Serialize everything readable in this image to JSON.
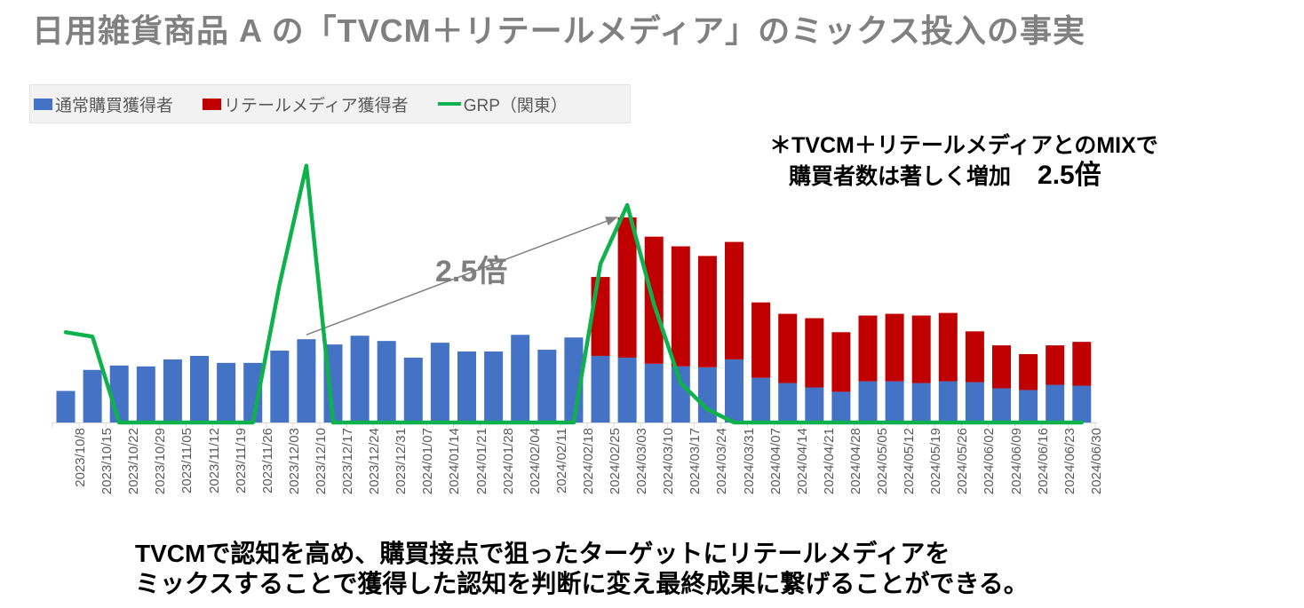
{
  "title": "日用雑貨商品 A の「TVCM＋リテールメディア」のミックス投入の事実",
  "legend": {
    "normal_buyers": "通常購買獲得者",
    "retail_media_buyers": "リテールメディア獲得者",
    "grp": "GRP（関東）"
  },
  "annotation": {
    "multiplier_label": "2.5倍",
    "note_line1": "＊TVCM＋リテールメディアとのMIXで",
    "note_line2": "購買者数は著しく増加",
    "note_multiplier": "2.5倍"
  },
  "caption": {
    "line1": "TVCMで認知を高め、購買接点で狙ったターゲットにリテールメディアを",
    "line2": "ミックスすることで獲得した認知を判断に変え最終成果に繋げることができる。"
  },
  "colors": {
    "blue_bar": "#4472C4",
    "red_bar": "#C00000",
    "green_line": "#0FB14C",
    "axis": "#d9d9d9",
    "arrow": "#808080",
    "title_gray": "#808080",
    "label_gray": "#595959"
  },
  "chart_data": {
    "type": "bar",
    "stacked": true,
    "grid": false,
    "y_axis_visible": false,
    "legend_position": "top-left",
    "ylim": [
      0,
      320
    ],
    "value_unit": "relative index (no y-axis shown in source)",
    "categories": [
      "2023/10/8",
      "2023/10/15",
      "2023/10/22",
      "2023/10/29",
      "2023/11/05",
      "2023/11/12",
      "2023/11/19",
      "2023/11/26",
      "2023/12/03",
      "2023/12/10",
      "2023/12/17",
      "2023/12/24",
      "2023/12/31",
      "2024/01/07",
      "2024/01/14",
      "2024/01/21",
      "2024/01/28",
      "2024/02/04",
      "2024/02/11",
      "2024/02/18",
      "2024/02/25",
      "2024/03/03",
      "2024/03/10",
      "2024/03/17",
      "2024/03/24",
      "2024/03/31",
      "2024/04/07",
      "2024/04/14",
      "2024/04/21",
      "2024/04/28",
      "2024/05/05",
      "2024/05/12",
      "2024/05/19",
      "2024/05/26",
      "2024/06/02",
      "2024/06/09",
      "2024/06/16",
      "2024/06/23",
      "2024/06/30"
    ],
    "series": [
      {
        "name": "通常購買獲得者",
        "render": "bar",
        "color": "#4472C4",
        "values": [
          36,
          60,
          65,
          64,
          72,
          76,
          68,
          68,
          82,
          95,
          89,
          99,
          93,
          74,
          91,
          81,
          81,
          100,
          83,
          97,
          76,
          74,
          67,
          64,
          63,
          72,
          51,
          45,
          40,
          35,
          47,
          47,
          45,
          47,
          46,
          39,
          37,
          43,
          42
        ]
      },
      {
        "name": "リテールメディア獲得者",
        "render": "bar",
        "color": "#C00000",
        "values": [
          0,
          0,
          0,
          0,
          0,
          0,
          0,
          0,
          0,
          0,
          0,
          0,
          0,
          0,
          0,
          0,
          0,
          0,
          0,
          0,
          90,
          160,
          145,
          137,
          127,
          134,
          86,
          79,
          79,
          68,
          75,
          77,
          77,
          78,
          58,
          49,
          41,
          45,
          50
        ]
      },
      {
        "name": "GRP（関東）",
        "render": "line",
        "color": "#0FB14C",
        "values": [
          103,
          98,
          0,
          0,
          0,
          0,
          0,
          0,
          158,
          293,
          0,
          0,
          0,
          0,
          0,
          0,
          0,
          0,
          0,
          0,
          181,
          248,
          135,
          45,
          15,
          0,
          0,
          0,
          0,
          0,
          0,
          0,
          0,
          0,
          0,
          0,
          0,
          0,
          0
        ]
      }
    ],
    "annotation_arrow": {
      "from_category": "2023/12/10",
      "to_category": "2024/03/03",
      "label": "2.5倍"
    }
  }
}
